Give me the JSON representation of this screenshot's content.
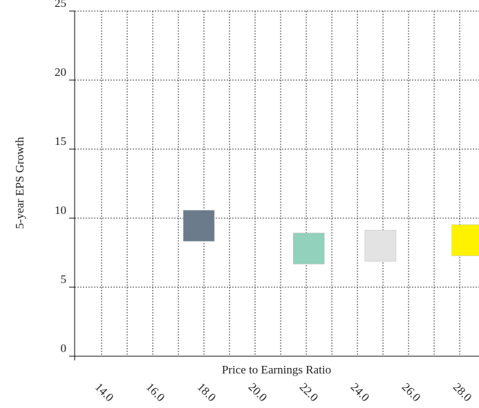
{
  "chart_data": {
    "type": "scatter",
    "marker": "square",
    "marker_size": 45,
    "x_label": "Price to Earnings Ratio",
    "y_label": "5-year EPS Growth",
    "x": [
      17.8,
      22.1,
      24.9,
      28.3
    ],
    "values": [
      9.45,
      7.8,
      8.0,
      8.4
    ],
    "colors": [
      "#6b7b8c",
      "#92d1bb",
      "#e3e3e3",
      "#fff200"
    ],
    "xlim": [
      13,
      28.7
    ],
    "xticks": [
      {
        "value": 14,
        "label": "14.0"
      },
      {
        "value": 16,
        "label": "16.0"
      },
      {
        "value": 18,
        "label": "18.0"
      },
      {
        "value": 20,
        "label": "20.0"
      },
      {
        "value": 22,
        "label": "22.0"
      },
      {
        "value": 24,
        "label": "24.0"
      },
      {
        "value": 26,
        "label": "26.0"
      },
      {
        "value": 28,
        "label": "28.0"
      }
    ],
    "xgrid_minor": [
      15,
      17,
      19,
      21,
      23,
      25,
      27
    ],
    "ylim": [
      0,
      25
    ],
    "yticks": [
      0,
      5,
      10,
      15,
      20,
      25
    ],
    "grid": true
  }
}
